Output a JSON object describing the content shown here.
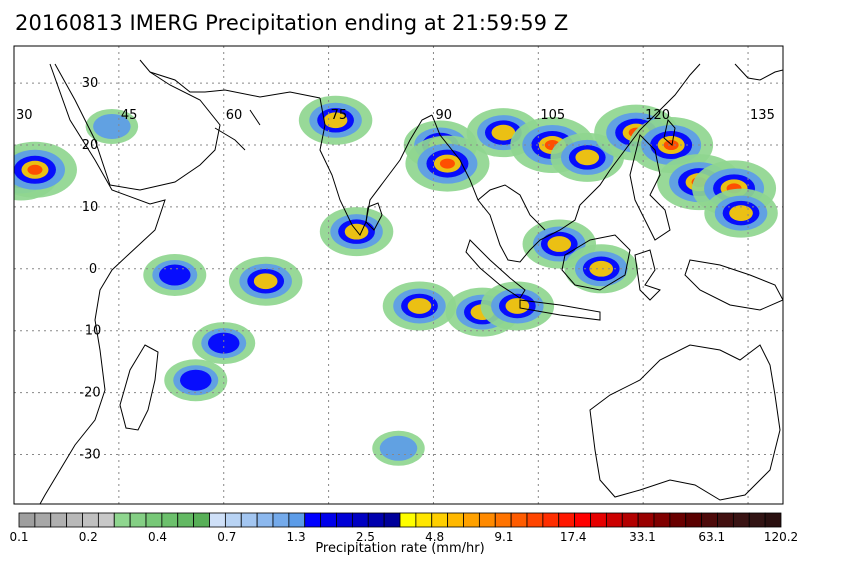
{
  "title": "20160813 IMERG Precipitation ending at 21:59:59 Z",
  "map": {
    "lon_labels": [
      "30",
      "45",
      "60",
      "75",
      "90",
      "105",
      "120",
      "135"
    ],
    "lat_labels": [
      "30",
      "20",
      "10",
      "0",
      "10",
      "-20",
      "-30"
    ],
    "lon_range": [
      30,
      140
    ],
    "lat_range": [
      -38,
      36
    ]
  },
  "colorbar": {
    "title": "Precipitation rate (mm/hr)",
    "tick_labels": [
      "0.1",
      "0.2",
      "0.4",
      "0.7",
      "1.3",
      "2.5",
      "4.8",
      "9.1",
      "17.4",
      "33.1",
      "63.1",
      "120.2"
    ],
    "colors": [
      "#9e9e9e",
      "#a7a7a7",
      "#afafaf",
      "#b8b8b8",
      "#c0c0c0",
      "#c8c8c8",
      "#8fd68f",
      "#84cf84",
      "#77c877",
      "#6cc06c",
      "#63b963",
      "#58b058",
      "#cfe0f8",
      "#b8d3f4",
      "#a3c6f1",
      "#8cb8ee",
      "#74aaeb",
      "#5c9ce8",
      "#0000ff",
      "#0000ea",
      "#0000d6",
      "#0000c2",
      "#0000ae",
      "#00009a",
      "#ffff00",
      "#ffe600",
      "#ffcf00",
      "#ffb800",
      "#ffa100",
      "#ff8a00",
      "#ff7300",
      "#ff5c00",
      "#ff4500",
      "#ff2e00",
      "#ff1700",
      "#ff0000",
      "#e60000",
      "#cc0000",
      "#b30000",
      "#990000",
      "#800000",
      "#6a0000",
      "#5a0000",
      "#4e0a0a",
      "#421010",
      "#3a1414",
      "#321414",
      "#2a1010"
    ]
  },
  "precip_cells": [
    {
      "lon": 31,
      "lat": 15,
      "intensity": 3
    },
    {
      "lon": 33,
      "lat": 16,
      "intensity": 4
    },
    {
      "lon": 44,
      "lat": 23,
      "intensity": 1
    },
    {
      "lon": 53,
      "lat": -1,
      "intensity": 2
    },
    {
      "lon": 79,
      "lat": 6,
      "intensity": 3
    },
    {
      "lon": 76,
      "lat": 24,
      "intensity": 3
    },
    {
      "lon": 91,
      "lat": 20,
      "intensity": 3
    },
    {
      "lon": 92,
      "lat": 17,
      "intensity": 4
    },
    {
      "lon": 100,
      "lat": 22,
      "intensity": 3
    },
    {
      "lon": 107,
      "lat": 20,
      "intensity": 4
    },
    {
      "lon": 112,
      "lat": 18,
      "intensity": 3
    },
    {
      "lon": 119,
      "lat": 22,
      "intensity": 4
    },
    {
      "lon": 124,
      "lat": 20,
      "intensity": 4
    },
    {
      "lon": 128,
      "lat": 14,
      "intensity": 4
    },
    {
      "lon": 133,
      "lat": 13,
      "intensity": 4
    },
    {
      "lon": 134,
      "lat": 9,
      "intensity": 3
    },
    {
      "lon": 108,
      "lat": 4,
      "intensity": 3
    },
    {
      "lon": 114,
      "lat": 0,
      "intensity": 3
    },
    {
      "lon": 66,
      "lat": -2,
      "intensity": 3
    },
    {
      "lon": 88,
      "lat": -6,
      "intensity": 3
    },
    {
      "lon": 97,
      "lat": -7,
      "intensity": 3
    },
    {
      "lon": 102,
      "lat": -6,
      "intensity": 3
    },
    {
      "lon": 60,
      "lat": -12,
      "intensity": 2
    },
    {
      "lon": 56,
      "lat": -18,
      "intensity": 2
    },
    {
      "lon": 85,
      "lat": -29,
      "intensity": 1
    }
  ]
}
